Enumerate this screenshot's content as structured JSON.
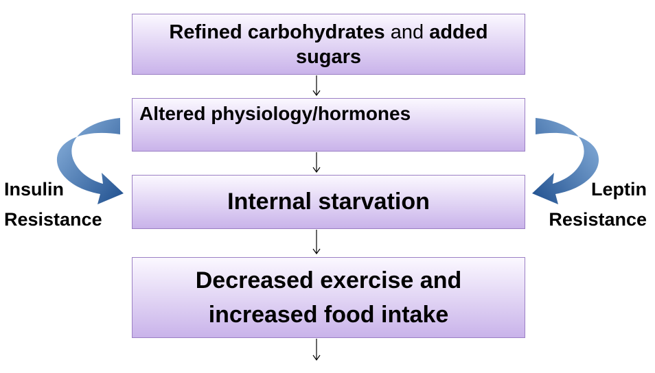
{
  "nodes": [
    {
      "segments": [
        "Refined carbohydrates",
        "and",
        "added",
        "sugars"
      ]
    },
    {
      "label": "Altered physiology/hormones"
    },
    {
      "label": "Internal starvation"
    },
    {
      "lines": [
        "Decreased exercise and",
        "increased food intake"
      ]
    }
  ],
  "side_labels": {
    "left": [
      "Insulin",
      "Resistance"
    ],
    "right": [
      "Leptin",
      "Resistance"
    ]
  }
}
